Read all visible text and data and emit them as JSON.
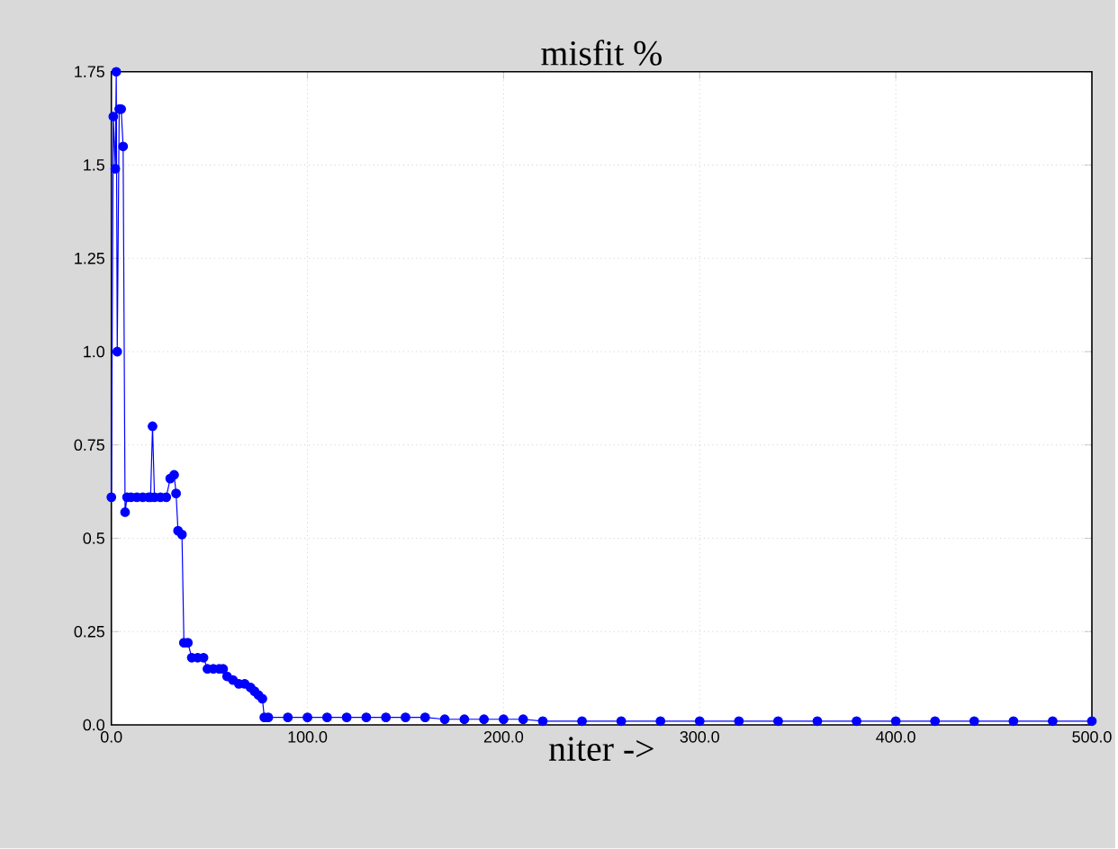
{
  "chart_data": {
    "type": "line",
    "title": "misfit %",
    "xlabel": "niter ->",
    "x": [
      0,
      1,
      2,
      2.5,
      3,
      4,
      5,
      6,
      7,
      8,
      10,
      13,
      16,
      19,
      20,
      21,
      22,
      25,
      28,
      30,
      32,
      33,
      34,
      36,
      37,
      39,
      41,
      44,
      47,
      49,
      52,
      55,
      57,
      59,
      62,
      65,
      68,
      71,
      73,
      75,
      77,
      78,
      80,
      90,
      100,
      110,
      120,
      130,
      140,
      150,
      160,
      170,
      180,
      190,
      200,
      210,
      220,
      240,
      260,
      280,
      300,
      320,
      340,
      360,
      380,
      400,
      420,
      440,
      460,
      480,
      500
    ],
    "series": [
      {
        "color": "#0000ff",
        "values": [
          0.61,
          1.63,
          1.49,
          1.75,
          1.0,
          1.65,
          1.65,
          1.55,
          0.57,
          0.61,
          0.61,
          0.61,
          0.61,
          0.61,
          0.61,
          0.8,
          0.61,
          0.61,
          0.61,
          0.66,
          0.67,
          0.62,
          0.52,
          0.51,
          0.22,
          0.22,
          0.18,
          0.18,
          0.18,
          0.15,
          0.15,
          0.15,
          0.15,
          0.13,
          0.12,
          0.11,
          0.11,
          0.1,
          0.09,
          0.08,
          0.07,
          0.02,
          0.02,
          0.02,
          0.02,
          0.02,
          0.02,
          0.02,
          0.02,
          0.02,
          0.02,
          0.015,
          0.015,
          0.015,
          0.015,
          0.015,
          0.01,
          0.01,
          0.01,
          0.01,
          0.01,
          0.01,
          0.01,
          0.01,
          0.01,
          0.01,
          0.01,
          0.01,
          0.01,
          0.01,
          0.01
        ]
      }
    ],
    "xlim": [
      0,
      500
    ],
    "ylim": [
      0,
      1.75
    ],
    "xticks": [
      {
        "value": 0,
        "label": "0.0"
      },
      {
        "value": 100,
        "label": "100.0"
      },
      {
        "value": 200,
        "label": "200.0"
      },
      {
        "value": 300,
        "label": "300.0"
      },
      {
        "value": 400,
        "label": "400.0"
      },
      {
        "value": 500,
        "label": "500.0"
      }
    ],
    "yticks": [
      {
        "value": 0,
        "label": "0.0"
      },
      1.75,
      1.5,
      1.25,
      {
        "value": 1,
        "label": "1.0"
      },
      0.75,
      {
        "value": 0.5,
        "label": "0.5"
      },
      0.25
    ],
    "grid": true,
    "marker": "circle",
    "line_style": "solid"
  }
}
